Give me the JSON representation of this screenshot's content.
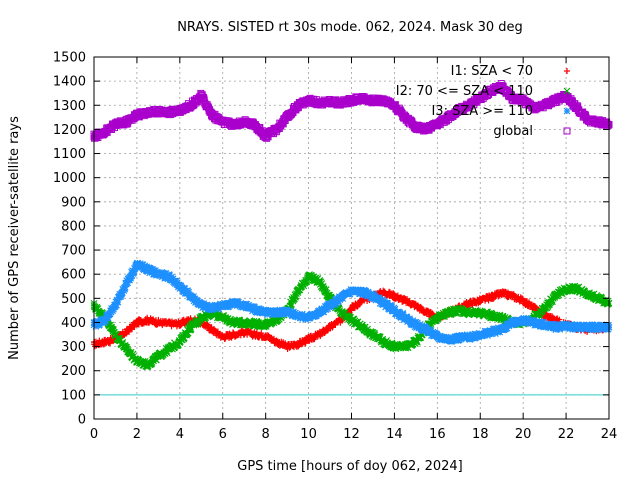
{
  "chart_data": {
    "type": "scatter",
    "title": "NRAYS. SISTED rt 30s mode. 062, 2024. Mask 30 deg",
    "xlabel": "GPS time [hours of doy 062, 2024]",
    "ylabel": "Number of GPS receiver-satellite rays",
    "xlim": [
      0,
      24
    ],
    "ylim": [
      0,
      1500
    ],
    "xticks": [
      0,
      2,
      4,
      6,
      8,
      10,
      12,
      14,
      16,
      18,
      20,
      22,
      24
    ],
    "yticks": [
      0,
      100,
      200,
      300,
      400,
      500,
      600,
      700,
      800,
      900,
      1000,
      1100,
      1200,
      1300,
      1400,
      1500
    ],
    "grid": true,
    "legend_position": "top-right",
    "threshold": {
      "value": 100,
      "color": "#33cccc"
    },
    "series": [
      {
        "name": "I1: SZA < 70",
        "marker": "+",
        "color": "#ff0000",
        "x": [
          0,
          0.5,
          1,
          1.5,
          2,
          2.5,
          3,
          3.5,
          4,
          4.5,
          5,
          5.5,
          6,
          6.5,
          7,
          7.5,
          8,
          8.5,
          9,
          9.5,
          10,
          10.5,
          11,
          11.5,
          12,
          12.5,
          13,
          13.5,
          14,
          14.5,
          15,
          15.5,
          16,
          16.5,
          17,
          17.5,
          18,
          18.5,
          19,
          19.5,
          20,
          20.5,
          21,
          21.5,
          22,
          22.5,
          23,
          23.5,
          24
        ],
        "values": [
          310,
          320,
          330,
          360,
          400,
          410,
          400,
          395,
          395,
          410,
          400,
          370,
          340,
          350,
          360,
          350,
          345,
          320,
          300,
          310,
          330,
          350,
          380,
          410,
          460,
          490,
          510,
          525,
          510,
          490,
          470,
          440,
          420,
          440,
          460,
          480,
          490,
          505,
          520,
          510,
          490,
          460,
          430,
          410,
          390,
          380,
          370,
          375,
          380
        ]
      },
      {
        "name": "I2: 70 <= SZA < 110",
        "marker": "x",
        "color": "#00b000",
        "x": [
          0,
          0.5,
          1,
          1.5,
          2,
          2.5,
          3,
          3.5,
          4,
          4.5,
          5,
          5.5,
          6,
          6.5,
          7,
          7.5,
          8,
          8.5,
          9,
          9.5,
          10,
          10.5,
          11,
          11.5,
          12,
          12.5,
          13,
          13.5,
          14,
          14.5,
          15,
          15.5,
          16,
          16.5,
          17,
          17.5,
          18,
          18.5,
          19,
          19.5,
          20,
          20.5,
          21,
          21.5,
          22,
          22.5,
          23,
          23.5,
          24
        ],
        "values": [
          470,
          420,
          350,
          290,
          240,
          225,
          260,
          290,
          320,
          380,
          420,
          440,
          420,
          400,
          400,
          395,
          390,
          410,
          450,
          530,
          590,
          570,
          500,
          440,
          410,
          380,
          350,
          320,
          300,
          300,
          320,
          380,
          420,
          440,
          450,
          440,
          440,
          430,
          420,
          400,
          400,
          420,
          460,
          510,
          540,
          540,
          520,
          500,
          480
        ]
      },
      {
        "name": "I3: SZA >= 110",
        "marker": "*",
        "color": "#1e90ff",
        "x": [
          0,
          0.5,
          1,
          1.5,
          2,
          2.5,
          3,
          3.5,
          4,
          4.5,
          5,
          5.5,
          6,
          6.5,
          7,
          7.5,
          8,
          8.5,
          9,
          9.5,
          10,
          10.5,
          11,
          11.5,
          12,
          12.5,
          13,
          13.5,
          14,
          14.5,
          15,
          15.5,
          16,
          16.5,
          17,
          17.5,
          18,
          18.5,
          19,
          19.5,
          20,
          20.5,
          21,
          21.5,
          22,
          22.5,
          23,
          23.5,
          24
        ],
        "values": [
          390,
          410,
          470,
          560,
          640,
          620,
          600,
          590,
          550,
          510,
          470,
          460,
          470,
          480,
          470,
          455,
          440,
          440,
          445,
          430,
          420,
          440,
          470,
          500,
          530,
          525,
          510,
          480,
          450,
          420,
          390,
          370,
          340,
          330,
          335,
          340,
          350,
          360,
          370,
          400,
          410,
          400,
          390,
          380,
          385,
          380,
          380,
          380,
          380
        ]
      },
      {
        "name": "global",
        "marker": "square",
        "color": "#aa00cc",
        "x": [
          0,
          0.5,
          1,
          1.5,
          2,
          2.5,
          3,
          3.5,
          4,
          4.5,
          5,
          5.5,
          6,
          6.5,
          7,
          7.5,
          8,
          8.5,
          9,
          9.5,
          10,
          10.5,
          11,
          11.5,
          12,
          12.5,
          13,
          13.5,
          14,
          14.5,
          15,
          15.5,
          16,
          16.5,
          17,
          17.5,
          18,
          18.5,
          19,
          19.5,
          20,
          20.5,
          21,
          21.5,
          22,
          22.5,
          23,
          23.5,
          24
        ],
        "values": [
          1170,
          1190,
          1220,
          1230,
          1260,
          1270,
          1275,
          1270,
          1280,
          1300,
          1340,
          1260,
          1230,
          1220,
          1230,
          1220,
          1170,
          1200,
          1250,
          1300,
          1320,
          1310,
          1315,
          1310,
          1320,
          1330,
          1320,
          1320,
          1300,
          1250,
          1210,
          1200,
          1220,
          1250,
          1280,
          1300,
          1330,
          1360,
          1380,
          1330,
          1320,
          1290,
          1300,
          1320,
          1340,
          1290,
          1240,
          1230,
          1220
        ]
      }
    ]
  }
}
